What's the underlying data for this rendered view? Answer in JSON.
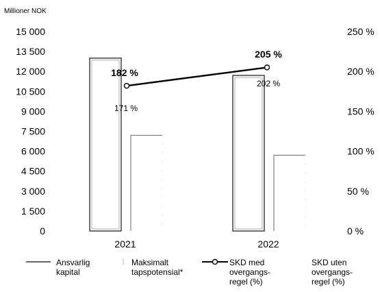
{
  "chart_data": {
    "type": "bar",
    "unit_label": "Millioner NOK",
    "categories": [
      "2021",
      "2022"
    ],
    "y_left": {
      "ticks": [
        "15 000",
        "13 500",
        "12 000",
        "10 500",
        "9 000",
        "7 500",
        "6 000",
        "4 500",
        "3 000",
        "1 500",
        "0"
      ],
      "range": [
        0,
        15000
      ]
    },
    "y_right": {
      "ticks": [
        "250 %",
        "200 %",
        "150 %",
        "100 %",
        "50 %",
        "0 %"
      ],
      "range": [
        0,
        250
      ]
    },
    "bar_series": [
      {
        "name": "Ansvarlig kapital",
        "values": [
          13000,
          11700
        ]
      },
      {
        "name": "Maksimalt tapspotensial*",
        "values": [
          7200,
          5700
        ]
      }
    ],
    "line_series": [
      {
        "name": "SKD med overgangs-regel (%)",
        "values": [
          182,
          205
        ],
        "labels": [
          "182 %",
          "205 %"
        ]
      },
      {
        "name": "SKD uten overgangs-regel (%)",
        "values": [
          171,
          202
        ],
        "labels": [
          "171 %",
          "202 %"
        ]
      }
    ],
    "legend": [
      {
        "lines": [
          "Ansvarlig",
          "kapital"
        ],
        "symbol": "bar"
      },
      {
        "lines": [
          "Maksimalt",
          "tapspotensial*"
        ],
        "symbol": "bar-dotted"
      },
      {
        "lines": [
          "SKD med",
          "overgangs-",
          "regel (%)"
        ],
        "symbol": "line-marker"
      },
      {
        "lines": [
          "SKD uten",
          "overgangs-",
          "regel (%)"
        ],
        "symbol": "none"
      }
    ],
    "legend_position": "bottom"
  }
}
